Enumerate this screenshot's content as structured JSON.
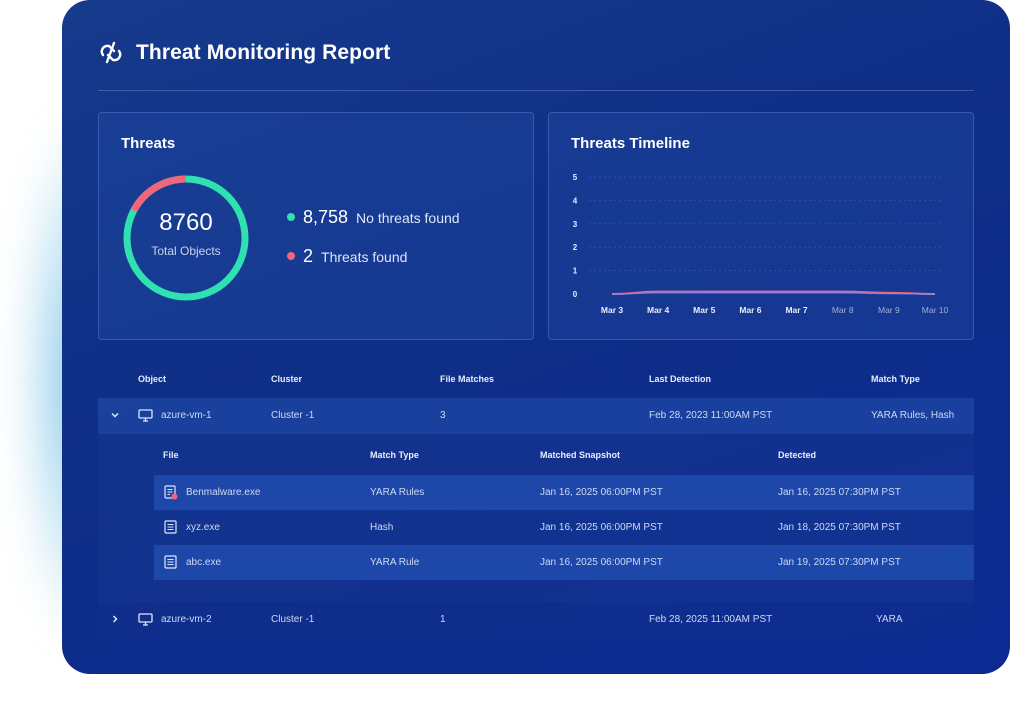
{
  "report": {
    "title": "Threat Monitoring Report",
    "logo_icon": "link-swirl-icon"
  },
  "threats_panel": {
    "title": "Threats",
    "total_value": "8760",
    "total_label": "Total Objects",
    "no_threats_count": "8,758",
    "no_threats_label": "No threats found",
    "threats_count": "2",
    "threats_label": "Threats found",
    "colors": {
      "safe": "#2fe0b0",
      "threat": "#f2667a"
    }
  },
  "timeline_panel": {
    "title": "Threats Timeline"
  },
  "chart_data": {
    "type": "line",
    "title": "Threats Timeline",
    "categories": [
      "Mar 3",
      "Mar 4",
      "Mar 5",
      "Mar 6",
      "Mar 7",
      "Mar 8",
      "Mar 9",
      "Mar 10"
    ],
    "series": [
      {
        "values": [
          0,
          0.1,
          0.1,
          0.1,
          0.1,
          0.1,
          0.05,
          0
        ],
        "color": "#f2667a"
      },
      {
        "values": [
          0,
          0.05,
          0.05,
          0.05,
          0.05,
          0.05,
          0.02,
          0
        ],
        "color": "#7c88ff"
      }
    ],
    "y_ticks": [
      "0",
      "1",
      "2",
      "3",
      "4",
      "5"
    ],
    "ylim": [
      0,
      5
    ],
    "bold_categories": 5,
    "grid": true
  },
  "table": {
    "headers": {
      "object": "Object",
      "cluster": "Cluster",
      "file_matches": "File Matches",
      "last_detection": "Last Detection",
      "match_type": "Match Type"
    },
    "rows": [
      {
        "object": "azure-vm-1",
        "cluster": "Cluster -1",
        "file_matches": "3",
        "last_detection": "Feb 28, 2023 11:00AM PST",
        "match_type": "YARA Rules, Hash"
      },
      {
        "object": "azure-vm-2",
        "cluster": "Cluster -1",
        "file_matches": "1",
        "last_detection": "Feb 28, 2025 11:00AM PST",
        "match_type": "YARA"
      }
    ],
    "sub_headers": {
      "file": "File",
      "match_type": "Match Type",
      "matched_snapshot": "Matched Snapshot",
      "detected": "Detected"
    },
    "sub_rows": [
      {
        "file": "Benmalware.exe",
        "match_type": "YARA Rules",
        "matched_snapshot": "Jan 16, 2025 06:00PM PST",
        "detected": "Jan 16, 2025 07:30PM PST"
      },
      {
        "file": "xyz.exe",
        "match_type": "Hash",
        "matched_snapshot": "Jan 16, 2025 06:00PM PST",
        "detected": "Jan 18, 2025 07:30PM PST"
      },
      {
        "file": "abc.exe",
        "match_type": "YARA Rule",
        "matched_snapshot": "Jan 16, 2025 06:00PM PST",
        "detected": "Jan 19, 2025 07:30PM PST"
      }
    ]
  }
}
